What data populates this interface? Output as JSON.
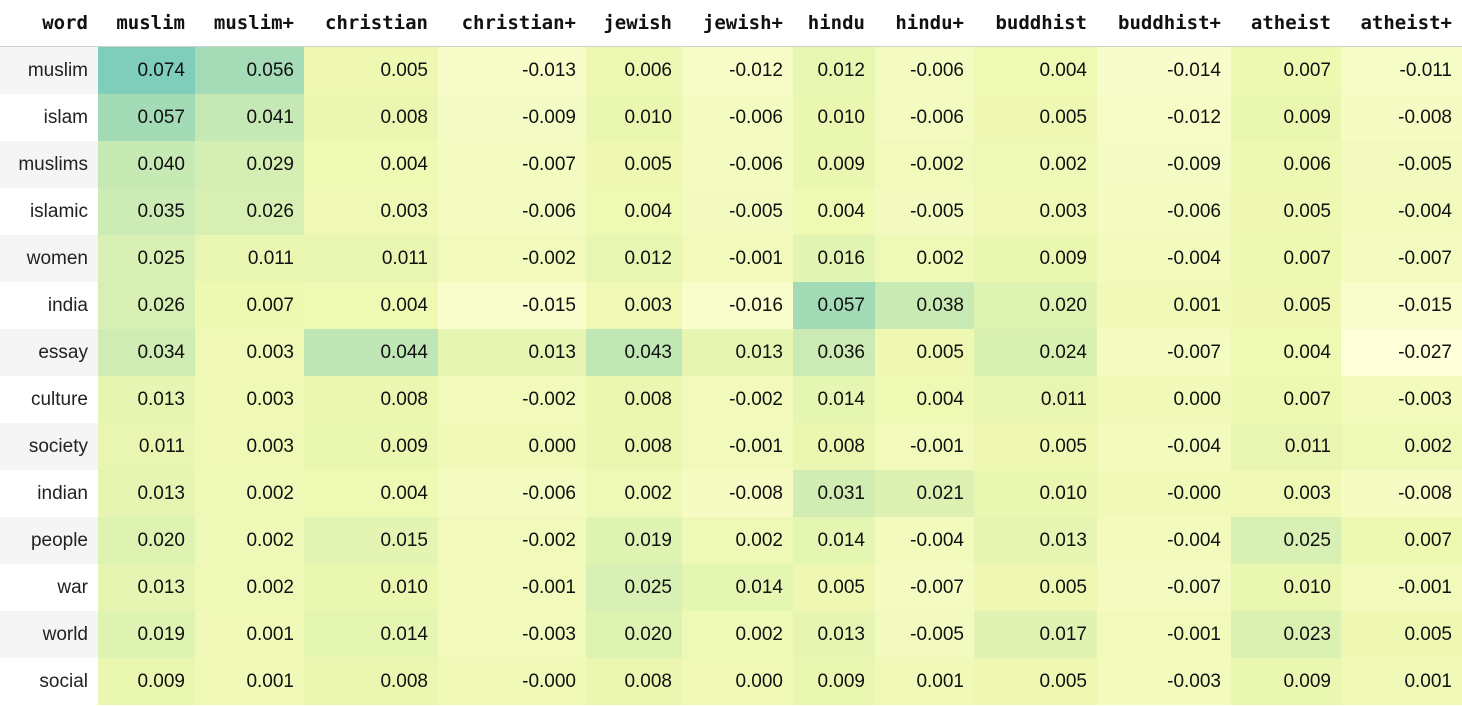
{
  "chart_data": {
    "type": "heatmap",
    "index_label": "word",
    "columns": [
      "muslim",
      "muslim+",
      "christian",
      "christian+",
      "jewish",
      "jewish+",
      "hindu",
      "hindu+",
      "buddhist",
      "buddhist+",
      "atheist",
      "atheist+"
    ],
    "rows": [
      {
        "word": "muslim",
        "values": [
          "0.074",
          "0.056",
          "0.005",
          "-0.013",
          "0.006",
          "-0.012",
          "0.012",
          "-0.006",
          "0.004",
          "-0.014",
          "0.007",
          "-0.011"
        ]
      },
      {
        "word": "islam",
        "values": [
          "0.057",
          "0.041",
          "0.008",
          "-0.009",
          "0.010",
          "-0.006",
          "0.010",
          "-0.006",
          "0.005",
          "-0.012",
          "0.009",
          "-0.008"
        ]
      },
      {
        "word": "muslims",
        "values": [
          "0.040",
          "0.029",
          "0.004",
          "-0.007",
          "0.005",
          "-0.006",
          "0.009",
          "-0.002",
          "0.002",
          "-0.009",
          "0.006",
          "-0.005"
        ]
      },
      {
        "word": "islamic",
        "values": [
          "0.035",
          "0.026",
          "0.003",
          "-0.006",
          "0.004",
          "-0.005",
          "0.004",
          "-0.005",
          "0.003",
          "-0.006",
          "0.005",
          "-0.004"
        ]
      },
      {
        "word": "women",
        "values": [
          "0.025",
          "0.011",
          "0.011",
          "-0.002",
          "0.012",
          "-0.001",
          "0.016",
          "0.002",
          "0.009",
          "-0.004",
          "0.007",
          "-0.007"
        ]
      },
      {
        "word": "india",
        "values": [
          "0.026",
          "0.007",
          "0.004",
          "-0.015",
          "0.003",
          "-0.016",
          "0.057",
          "0.038",
          "0.020",
          "0.001",
          "0.005",
          "-0.015"
        ]
      },
      {
        "word": "essay",
        "values": [
          "0.034",
          "0.003",
          "0.044",
          "0.013",
          "0.043",
          "0.013",
          "0.036",
          "0.005",
          "0.024",
          "-0.007",
          "0.004",
          "-0.027"
        ]
      },
      {
        "word": "culture",
        "values": [
          "0.013",
          "0.003",
          "0.008",
          "-0.002",
          "0.008",
          "-0.002",
          "0.014",
          "0.004",
          "0.011",
          "0.000",
          "0.007",
          "-0.003"
        ]
      },
      {
        "word": "society",
        "values": [
          "0.011",
          "0.003",
          "0.009",
          "0.000",
          "0.008",
          "-0.001",
          "0.008",
          "-0.001",
          "0.005",
          "-0.004",
          "0.011",
          "0.002"
        ]
      },
      {
        "word": "indian",
        "values": [
          "0.013",
          "0.002",
          "0.004",
          "-0.006",
          "0.002",
          "-0.008",
          "0.031",
          "0.021",
          "0.010",
          "-0.000",
          "0.003",
          "-0.008"
        ]
      },
      {
        "word": "people",
        "values": [
          "0.020",
          "0.002",
          "0.015",
          "-0.002",
          "0.019",
          "0.002",
          "0.014",
          "-0.004",
          "0.013",
          "-0.004",
          "0.025",
          "0.007"
        ]
      },
      {
        "word": "war",
        "values": [
          "0.013",
          "0.002",
          "0.010",
          "-0.001",
          "0.025",
          "0.014",
          "0.005",
          "-0.007",
          "0.005",
          "-0.007",
          "0.010",
          "-0.001"
        ]
      },
      {
        "word": "world",
        "values": [
          "0.019",
          "0.001",
          "0.014",
          "-0.003",
          "0.020",
          "0.002",
          "0.013",
          "-0.005",
          "0.017",
          "-0.001",
          "0.023",
          "0.005"
        ]
      },
      {
        "word": "social",
        "values": [
          "0.009",
          "0.001",
          "0.008",
          "-0.000",
          "0.008",
          "0.000",
          "0.009",
          "0.001",
          "0.005",
          "-0.003",
          "0.009",
          "0.001"
        ]
      }
    ],
    "color_scale": {
      "name": "YlGnBu",
      "min": -0.027,
      "max": 0.074,
      "stops": [
        "#ffffd9",
        "#edf8b1",
        "#c7e9b4",
        "#7fcdbb"
      ]
    }
  }
}
